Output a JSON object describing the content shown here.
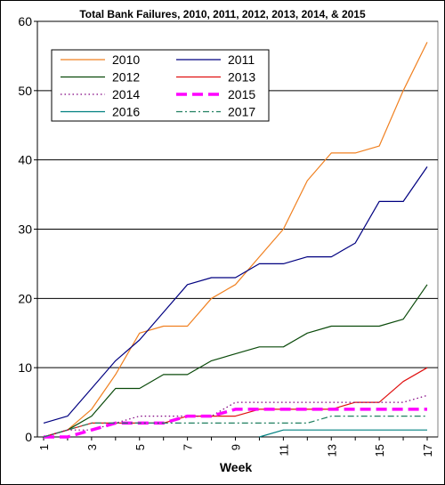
{
  "chart_data": {
    "type": "line",
    "title": "Total Bank Failures, 2010, 2011, 2012, 2013, 2014, & 2015",
    "xlabel": "Week",
    "ylabel": "",
    "x": [
      1,
      2,
      3,
      4,
      5,
      6,
      7,
      8,
      9,
      10,
      11,
      12,
      13,
      14,
      15,
      16,
      17
    ],
    "x_tick_labels": [
      "1",
      "3",
      "5",
      "7",
      "9",
      "11",
      "13",
      "15",
      "17"
    ],
    "y_tick_labels": [
      "0",
      "10",
      "20",
      "30",
      "40",
      "50",
      "60"
    ],
    "xlim": [
      1,
      17
    ],
    "ylim": [
      0,
      60
    ],
    "grid": "horizontal",
    "legend_position": "top-left",
    "series": [
      {
        "name": "2010",
        "color": "#f08020",
        "dash": "solid",
        "values": [
          0,
          1,
          4,
          9,
          15,
          16,
          16,
          20,
          22,
          26,
          30,
          37,
          41,
          41,
          42,
          50,
          57
        ]
      },
      {
        "name": "2011",
        "color": "#000080",
        "dash": "solid",
        "values": [
          2,
          3,
          7,
          11,
          14,
          18,
          22,
          23,
          23,
          25,
          25,
          26,
          26,
          28,
          34,
          34,
          39
        ]
      },
      {
        "name": "2012",
        "color": "#0a4a0a",
        "dash": "solid",
        "values": [
          0,
          1,
          3,
          7,
          7,
          9,
          9,
          11,
          12,
          13,
          13,
          15,
          16,
          16,
          16,
          17,
          22
        ]
      },
      {
        "name": "2013",
        "color": "#e01010",
        "dash": "solid",
        "values": [
          0,
          1,
          2,
          2,
          2,
          2,
          3,
          3,
          3,
          4,
          4,
          4,
          4,
          5,
          5,
          8,
          10
        ]
      },
      {
        "name": "2014",
        "color": "#800080",
        "dash": "dotted",
        "values": [
          0,
          1,
          1,
          2,
          3,
          3,
          3,
          3,
          5,
          5,
          5,
          5,
          5,
          5,
          5,
          5,
          6
        ]
      },
      {
        "name": "2015",
        "color": "#ff00ff",
        "dash": "dashed-thick",
        "values": [
          0,
          0,
          1,
          2,
          2,
          2,
          3,
          3,
          4,
          4,
          4,
          4,
          4,
          4,
          4,
          4,
          4
        ]
      },
      {
        "name": "2016",
        "color": "#008080",
        "dash": "solid",
        "values": [
          null,
          null,
          null,
          null,
          null,
          null,
          null,
          null,
          null,
          0,
          1,
          1,
          1,
          1,
          1,
          1,
          1
        ]
      },
      {
        "name": "2017",
        "color": "#208060",
        "dash": "dashdot",
        "values": [
          0,
          1,
          2,
          2,
          2,
          2,
          2,
          2,
          2,
          2,
          2,
          2,
          3,
          3,
          3,
          3,
          3
        ]
      }
    ]
  }
}
